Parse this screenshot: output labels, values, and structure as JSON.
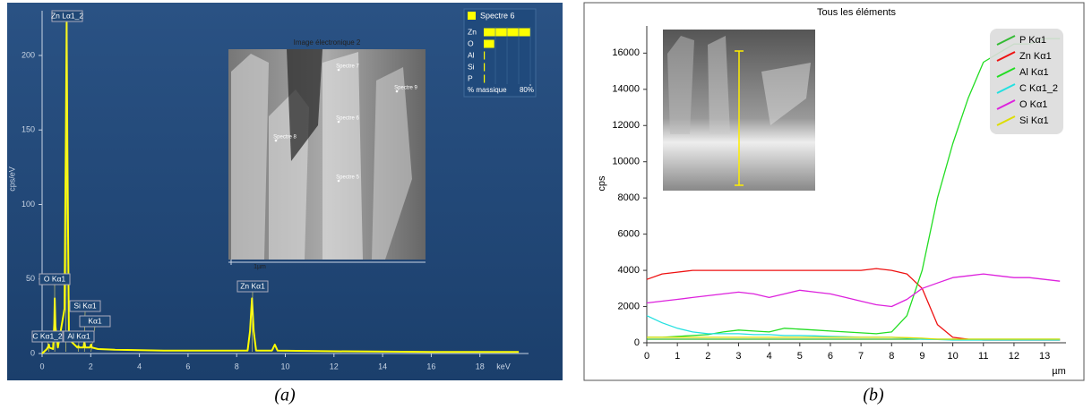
{
  "chart_data": [
    {
      "type": "line",
      "xlabel": "keV",
      "ylabel": "cps/eV",
      "x": [
        0,
        0.2,
        0.26,
        0.28,
        0.3,
        0.45,
        0.5,
        0.52,
        0.55,
        0.65,
        0.92,
        0.98,
        1.01,
        1.04,
        1.1,
        1.2,
        1.45,
        1.49,
        1.53,
        1.7,
        1.74,
        1.78,
        1.97,
        2.01,
        2.05,
        2.3,
        3,
        5,
        8.45,
        8.55,
        8.63,
        8.7,
        8.8,
        9.45,
        9.57,
        9.68,
        12,
        16,
        19.6
      ],
      "series": [
        {
          "name": "Spectre 6",
          "color": "#ffff00",
          "values": [
            0,
            3,
            5,
            6,
            4,
            3,
            20,
            37,
            18,
            4,
            30,
            150,
            222,
            140,
            15,
            8,
            4,
            5,
            4,
            4,
            8,
            4,
            4,
            6,
            4,
            3,
            2.5,
            2,
            2,
            15,
            37,
            15,
            2,
            2,
            6,
            2,
            1.5,
            1,
            1
          ]
        }
      ],
      "xlim": [
        0,
        20
      ],
      "xticks": [
        0,
        2,
        4,
        6,
        8,
        10,
        12,
        14,
        16,
        18
      ],
      "ylim": [
        0,
        230
      ],
      "yticks": [
        0,
        50,
        100,
        150,
        200
      ],
      "annotations": [
        "Zn Lα1_2",
        "O Kα1",
        "Si Kα1",
        "Kα1",
        "C Kα1_2",
        "Al Kα1",
        "Zn Kα1"
      ],
      "inset": {
        "title": "Image électronique 2",
        "labels": [
          "Spectre 7",
          "Spectre 9",
          "Spectre 6",
          "Spectre 8",
          "Spectre 5"
        ],
        "scale": "1µm"
      }
    },
    {
      "type": "hbar",
      "title": "Spectre 6",
      "color": "#ffff00",
      "categories": [
        "Zn",
        "O",
        "Al",
        "Si",
        "P"
      ],
      "values": [
        80,
        18,
        0.5,
        0.3,
        0.2
      ],
      "xlabel": "% massique",
      "xlim": [
        0,
        80
      ],
      "xticks": [
        {
          "value": 80,
          "label": "80%"
        }
      ]
    },
    {
      "type": "line",
      "title": "Tous les éléments",
      "xlabel": "µm",
      "ylabel": "cps",
      "x": [
        0,
        0.5,
        1,
        1.5,
        2,
        2.5,
        3,
        3.5,
        4,
        4.5,
        5,
        5.5,
        6,
        6.5,
        7,
        7.5,
        8,
        8.5,
        9,
        9.5,
        10,
        10.5,
        11,
        11.5,
        12,
        12.5,
        13,
        13.5
      ],
      "xlim": [
        0,
        13.7
      ],
      "xticks": [
        0,
        1,
        2,
        3,
        4,
        5,
        6,
        7,
        8,
        9,
        10,
        11,
        12,
        13
      ],
      "ylim": [
        0,
        17500
      ],
      "yticks": [
        0,
        2000,
        4000,
        6000,
        8000,
        10000,
        12000,
        14000,
        16000
      ],
      "series": [
        {
          "name": "P Kα1",
          "color": "#33bb33",
          "values": [
            200,
            200,
            200,
            200,
            200,
            200,
            200,
            200,
            200,
            200,
            200,
            200,
            200,
            200,
            200,
            200,
            200,
            200,
            200,
            200,
            200,
            200,
            200,
            200,
            200,
            200,
            200,
            200
          ]
        },
        {
          "name": "Zn Kα1",
          "color": "#ee1111",
          "values": [
            3500,
            3800,
            3900,
            4000,
            4000,
            4000,
            4000,
            4000,
            4000,
            4000,
            4000,
            4000,
            4000,
            4000,
            4000,
            4100,
            4000,
            3800,
            3000,
            1000,
            300,
            200,
            150,
            150,
            150,
            150,
            150,
            150
          ]
        },
        {
          "name": "Al Kα1",
          "color": "#22dd22",
          "values": [
            300,
            300,
            350,
            400,
            450,
            600,
            700,
            650,
            600,
            800,
            750,
            700,
            650,
            600,
            550,
            500,
            600,
            1500,
            4000,
            8000,
            11000,
            13500,
            15500,
            16000,
            16500,
            16500,
            16800,
            16800
          ]
        },
        {
          "name": "C Kα1_2",
          "color": "#22e0e0",
          "values": [
            1500,
            1100,
            800,
            600,
            500,
            500,
            500,
            450,
            450,
            400,
            400,
            380,
            350,
            330,
            300,
            300,
            300,
            250,
            200,
            180,
            150,
            150,
            150,
            150,
            150,
            150,
            150,
            150
          ]
        },
        {
          "name": "O Kα1",
          "color": "#dd22dd",
          "values": [
            2200,
            2300,
            2400,
            2500,
            2600,
            2700,
            2800,
            2700,
            2500,
            2700,
            2900,
            2800,
            2700,
            2500,
            2300,
            2100,
            2000,
            2400,
            3000,
            3300,
            3600,
            3700,
            3800,
            3700,
            3600,
            3600,
            3500,
            3400
          ]
        },
        {
          "name": "Si Kα1",
          "color": "#dddd00",
          "values": [
            300,
            300,
            300,
            300,
            300,
            300,
            300,
            300,
            300,
            300,
            300,
            300,
            300,
            300,
            300,
            300,
            300,
            280,
            250,
            200,
            200,
            200,
            200,
            200,
            200,
            200,
            200,
            200
          ]
        }
      ]
    }
  ],
  "captions": [
    "(a)",
    "(b)"
  ]
}
